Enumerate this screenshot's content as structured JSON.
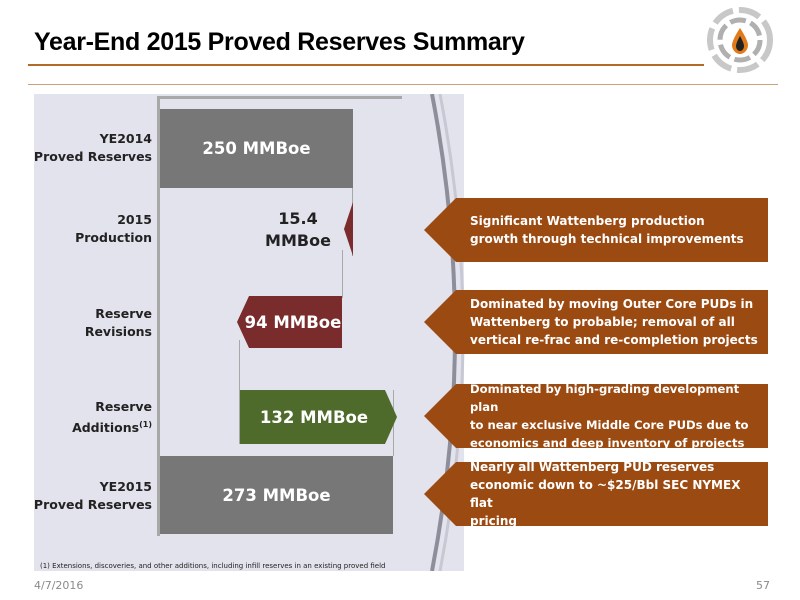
{
  "title": "Year-End 2015 Proved Reserves Summary",
  "colors": {
    "accent_orange": "#9b4a12",
    "maroon": "#7a2b2b",
    "green": "#4e6b2b",
    "gray_bar": "#777777",
    "panel": "#e3e3ee"
  },
  "chart_data": {
    "type": "bar",
    "subtype": "waterfall",
    "unit": "MMBoe",
    "categories": [
      "YE2014 Proved Reserves",
      "2015 Production",
      "Reserve Revisions",
      "Reserve Additions(1)",
      "YE2015 Proved Reserves"
    ],
    "steps": [
      {
        "label_line1": "YE2014",
        "label_line2": "Proved Reserves",
        "label_sup": "",
        "kind": "total",
        "value": 250,
        "value_label": "250 MMBoe"
      },
      {
        "label_line1": "2015",
        "label_line2": "Production",
        "label_sup": "",
        "kind": "decrease",
        "value": 15.4,
        "value_label_line1": "15.4",
        "value_label_line2": "MMBoe"
      },
      {
        "label_line1": "Reserve",
        "label_line2": "Revisions",
        "label_sup": "",
        "kind": "decrease",
        "value": 94,
        "value_label": "94 MMBoe"
      },
      {
        "label_line1": "Reserve",
        "label_line2": "Additions",
        "label_sup": "(1)",
        "kind": "increase",
        "value": 132,
        "value_label": "132 MMBoe"
      },
      {
        "label_line1": "YE2015",
        "label_line2": "Proved Reserves",
        "label_sup": "",
        "kind": "total",
        "value": 273,
        "value_label": "273 MMBoe"
      }
    ],
    "xlim": [
      0,
      300
    ],
    "grid": false,
    "legend": "none"
  },
  "callouts": [
    {
      "line1": "Significant Wattenberg production",
      "line2": "growth through technical improvements",
      "line3": ""
    },
    {
      "line1": "Dominated by moving Outer Core PUDs in",
      "line2": "Wattenberg to probable; removal of all",
      "line3": "vertical re-frac and re-completion projects"
    },
    {
      "line1": "Dominated by high-grading development plan",
      "line2": "to near exclusive Middle Core PUDs due to",
      "line3": "economics and deep inventory of projects"
    },
    {
      "line1": "Nearly all Wattenberg PUD reserves",
      "line2": "economic down to ~$25/Bbl SEC NYMEX  flat",
      "line3": "pricing"
    }
  ],
  "footnote": "(1)  Extensions, discoveries, and other additions, including infill reserves in an existing proved field",
  "footer": {
    "date": "4/7/2016",
    "page": "57"
  },
  "logo": {
    "icon": "oil-drop-gear-logo"
  }
}
